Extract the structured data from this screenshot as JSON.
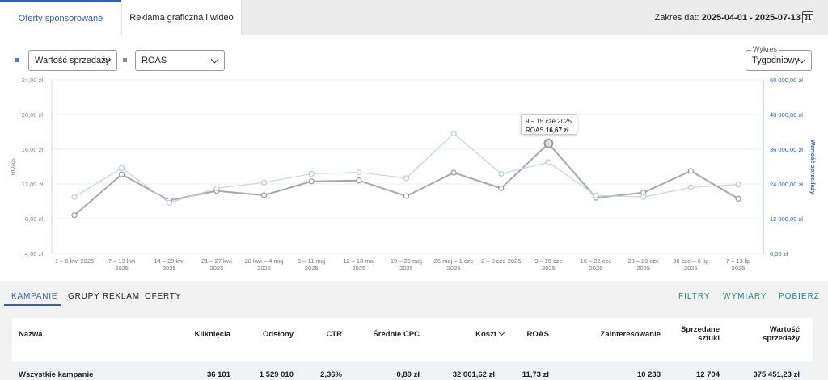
{
  "tabs": [
    {
      "label": "Oferty sponsorowane",
      "active": true
    },
    {
      "label": "Reklama graficzna i wideo",
      "active": false
    }
  ],
  "date_range": {
    "prefix": "Zakres dat:",
    "value": "2025-04-01 - 2025-07-13",
    "icon": "calendar-icon",
    "icon_day": "31"
  },
  "controls": {
    "metric1": {
      "value": "Wartość sprzedaży",
      "color": "#4a7bd0"
    },
    "metric2": {
      "value": "ROAS",
      "color": "#888888"
    },
    "chart_mode": {
      "label": "Wykres",
      "value": "Tygodniowy"
    }
  },
  "tooltip": {
    "title": "9 – 15 cze 2025",
    "metric": "ROAS",
    "value": "16,67 zł"
  },
  "chart_data": {
    "type": "line",
    "x": [
      "1 – 6 kwi 2025",
      "7 – 13 kwi 2025",
      "14 – 20 kwi 2025",
      "21 – 27 kwi 2025",
      "28 kwi – 4 maj 2025",
      "5 – 11 maj 2025",
      "12 – 18 maj 2025",
      "19 – 25 maj 2025",
      "26 maj – 1 cze 2025",
      "2 – 8 cze 2025",
      "9 – 15 cze 2025",
      "16 – 22 cze 2025",
      "23 – 29 cze 2025",
      "30 cze – 6 lip 2025",
      "7 – 13 lip 2025"
    ],
    "x_label_lines": [
      [
        "1 – 6 kwi 2025"
      ],
      [
        "7 – 13 kwi",
        "2025"
      ],
      [
        "14 – 20 kwi",
        "2025"
      ],
      [
        "21 – 27 kwi",
        "2025"
      ],
      [
        "28 kwi – 4 maj",
        "2025"
      ],
      [
        "5 – 11 maj",
        "2025"
      ],
      [
        "12 – 18 maj",
        "2025"
      ],
      [
        "19 – 25 maj",
        "2025"
      ],
      [
        "26 maj – 1 cze",
        "2025"
      ],
      [
        "2 – 8 cze 2025"
      ],
      [
        "9 – 15 cze",
        "2025"
      ],
      [
        "16 – 22 cze",
        "2025"
      ],
      [
        "23 – 29 cze",
        "2025"
      ],
      [
        "30 cze – 6 lip",
        "2025"
      ],
      [
        "7 – 13 lip",
        "2025"
      ]
    ],
    "series": [
      {
        "name": "ROAS",
        "axis": "left",
        "color": "#a8a8a8",
        "values": [
          8.4,
          13.1,
          10.1,
          11.2,
          10.7,
          12.3,
          12.4,
          10.6,
          13.3,
          11.5,
          16.67,
          10.4,
          11.0,
          13.5,
          10.3
        ]
      },
      {
        "name": "Wartość sprzedaży",
        "axis": "right",
        "color": "#c5d3f0",
        "values": [
          19500,
          29500,
          17500,
          22500,
          24500,
          27500,
          28000,
          26000,
          41500,
          27500,
          31500,
          20000,
          19500,
          22800,
          23800
        ]
      }
    ],
    "y_left": {
      "label": "ROAS",
      "ticks": [
        "24,00 zł",
        "20,00 zł",
        "16,00 zł",
        "12,00 zł",
        "8,00 zł",
        "4,00 zł"
      ],
      "range": [
        4,
        24
      ]
    },
    "y_right": {
      "label": "Wartość sprzedaży",
      "ticks": [
        "60 000,00 zł",
        "48 000,00 zł",
        "36 000,00 zł",
        "24 000,00 zł",
        "12 000,00 zł",
        "0,00 zł"
      ],
      "range": [
        0,
        60000
      ]
    },
    "highlight_index": 10
  },
  "bottom_tabs": [
    {
      "label": "KAMPANIE",
      "active": true
    },
    {
      "label": "GRUPY REKLAM",
      "active": false
    },
    {
      "label": "OFERTY",
      "active": false
    }
  ],
  "actions": [
    "FILTRY",
    "WYMIARY",
    "POBIERZ"
  ],
  "table": {
    "headers": [
      "Nazwa",
      "Kliknięcia",
      "Odsłony",
      "CTR",
      "Średnie CPC",
      "Koszt",
      "ROAS",
      "Zainteresowanie",
      "Sprzedane sztuki",
      "Wartość sprzedaży"
    ],
    "header_lines": {
      "sprzedane": [
        "Sprzedane",
        "sztuki"
      ],
      "wartosc": [
        "Wartość",
        "sprzedaży"
      ]
    },
    "rows": [
      [
        "Wszystkie kampanie",
        "36 101",
        "1 529 010",
        "2,36%",
        "0,89 zł",
        "32 001,62 zł",
        "11,73 zł",
        "10 233",
        "12 704",
        "375 451,23 zł"
      ]
    ]
  }
}
